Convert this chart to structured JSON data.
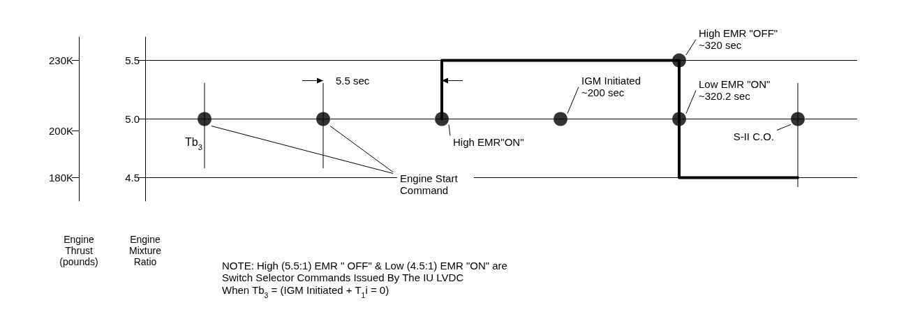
{
  "chart_data": {
    "type": "step",
    "ylabel": "Engine Mixture Ratio",
    "y2label": "Engine Thrust (pounds)",
    "categories": [
      null,
      null,
      null,
      null,
      null,
      null
    ],
    "ylim": [
      4.3,
      5.7
    ],
    "yticks": [
      {
        "value": 4.5,
        "label": "4.5"
      },
      {
        "value": 5,
        "label": "5.0"
      },
      {
        "value": 5.5,
        "label": "5.5"
      }
    ],
    "y2lim": [
      170000,
      240000
    ],
    "y2ticks": [
      {
        "value": 180000,
        "label": "180K"
      },
      {
        "value": 200000,
        "label": "200K"
      },
      {
        "value": 230000,
        "label": "230K"
      }
    ],
    "grid": "y",
    "series": [
      {
        "color": "#000000",
        "marker": "none",
        "line_style": "solid",
        "values": [
          null,
          null,
          5,
          5.5,
          5.5,
          4.5
        ]
      },
      {
        "type": "scatter",
        "color": "#000000",
        "marker": "circle",
        "values": [
          5,
          5,
          5,
          5,
          5,
          5
        ]
      },
      {
        "type": "scatter",
        "color": "#000000",
        "marker": "circle",
        "values": [
          null,
          null,
          null,
          null,
          5.5,
          null
        ]
      }
    ],
    "annotations": [
      "Tb$_{3}$",
      "5.5 sec",
      "High EMR\"ON\"",
      "IGM Initiated\n~200 sec",
      "High EMR \"OFF\"\n~320 sec",
      "Low EMR \"ON\"\n~320.2 sec",
      "S-II C.O.",
      "Engine Start\nCommand",
      "NOTE: High (5.5:1) EMR \" OFF\" & Low (4.5:1) EMR \"ON\" are\nSwitch Selector Commands Issued By The IU LVDC\nWhen Tb$_{3}$ = (IGM Initiated + T$_{1}$i = 0)"
    ]
  }
}
